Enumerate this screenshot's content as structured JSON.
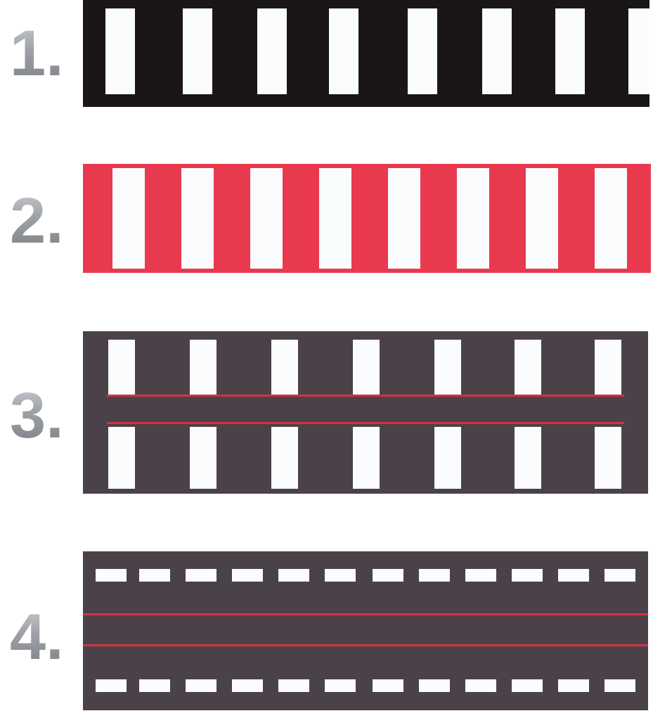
{
  "rows": [
    {
      "label": "1.",
      "pattern": "wide-bars-on-black"
    },
    {
      "label": "2.",
      "pattern": "white-and-red-alternating-bars"
    },
    {
      "label": "3.",
      "pattern": "split-bars-with-red-lines"
    },
    {
      "label": "4.",
      "pattern": "dashed-lanes-with-red-lines"
    }
  ],
  "colors": {
    "black": "#1a1617",
    "red": "#e8394e",
    "asphalt": "#4b4249",
    "red_line": "#d8303f",
    "white": "#fbfcfd",
    "numeral": "#9a9ea3"
  }
}
